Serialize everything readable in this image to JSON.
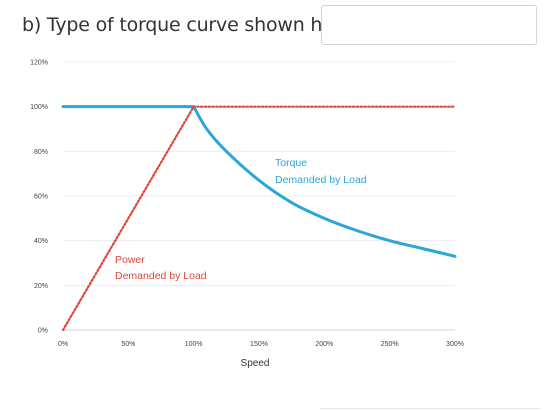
{
  "question": {
    "label": "b) Type of torque curve shown here:",
    "input_value": "",
    "input_placeholder": ""
  },
  "chart_data": {
    "type": "line",
    "xlabel": "Speed",
    "ylabel": "",
    "title": "",
    "xlim": [
      0,
      300
    ],
    "ylim": [
      0,
      120
    ],
    "x_ticks": [
      "0%",
      "50%",
      "100%",
      "150%",
      "200%",
      "250%",
      "300%"
    ],
    "y_ticks": [
      "0%",
      "20%",
      "40%",
      "60%",
      "80%",
      "100%",
      "120%"
    ],
    "grid": true,
    "series": [
      {
        "annotation": [
          "Torque",
          "Demanded by Load"
        ],
        "color": "#2aa6d8",
        "style": "solid",
        "x": [
          0,
          100,
          110,
          125,
          150,
          175,
          200,
          225,
          250,
          275,
          300
        ],
        "y": [
          100,
          100,
          90,
          80,
          67,
          57,
          50,
          44.5,
          40,
          36.5,
          33
        ]
      },
      {
        "annotation": [
          "Power",
          "Demanded by Load"
        ],
        "color": "#e0463a",
        "style": "dotted",
        "x": [
          0,
          100,
          300
        ],
        "y": [
          0,
          100,
          100
        ]
      }
    ]
  }
}
